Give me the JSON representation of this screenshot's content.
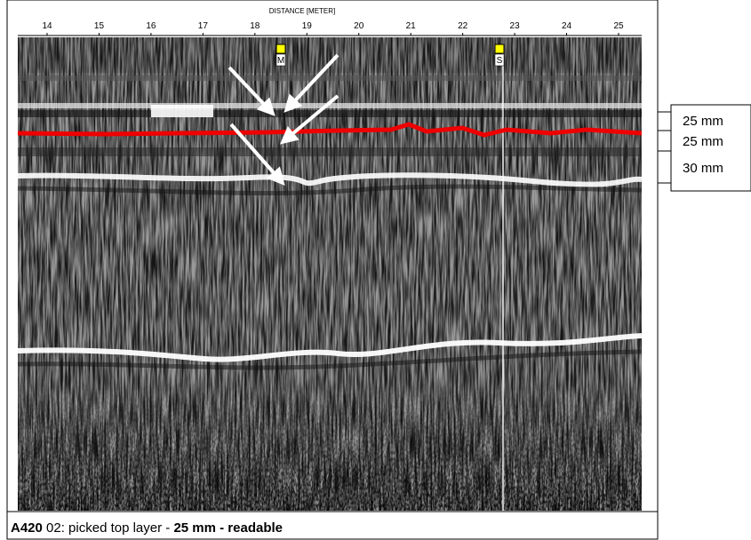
{
  "axis": {
    "label": "DISTANCE [METER]",
    "ticks": [
      14,
      15,
      16,
      17,
      18,
      19,
      20,
      21,
      22,
      23,
      24,
      25
    ]
  },
  "markers": [
    "M",
    "S"
  ],
  "layers": [
    "25 mm",
    "25 mm",
    "30 mm"
  ],
  "caption": {
    "id": "A420",
    "text": " 02: picked top layer - ",
    "emphasis": "25 mm - readable"
  }
}
